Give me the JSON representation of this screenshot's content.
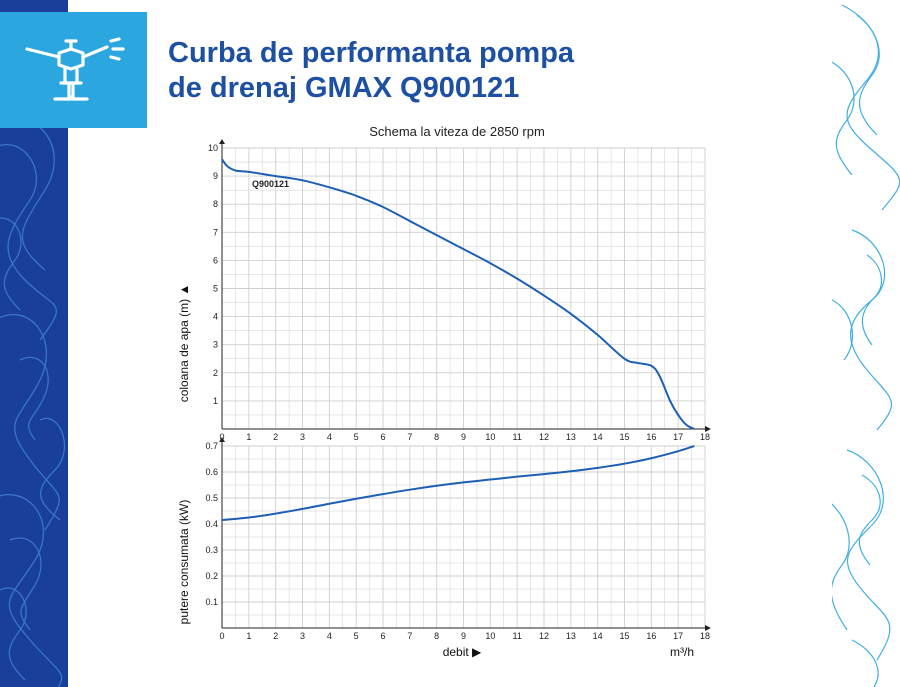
{
  "title": {
    "line1": "Curba de performanta pompa",
    "line2": "de drenaj GMAX Q900121"
  },
  "colors": {
    "title": "#1d4fa3",
    "left_band": "#1a3f9a",
    "icon_box": "#2ba6df",
    "curve": "#1d5fb3",
    "grid": "#cfcfcf",
    "contour": "#2ba6df"
  },
  "icon": "sprinkler-icon",
  "chart_data": [
    {
      "type": "line",
      "subtitle": "Schema la viteza de 2850 rpm",
      "ylabel": "coloana de apa (m) ▲",
      "series": [
        {
          "name": "Q900121",
          "x": [
            0,
            0.2,
            0.5,
            1,
            2,
            3,
            4,
            5,
            6,
            7,
            8,
            9,
            10,
            11,
            12,
            13,
            14,
            15,
            15.5,
            16,
            16.3,
            16.7,
            17,
            17.3,
            17.6
          ],
          "values": [
            9.6,
            9.35,
            9.2,
            9.15,
            9.0,
            8.85,
            8.6,
            8.3,
            7.9,
            7.4,
            6.9,
            6.4,
            5.9,
            5.35,
            4.75,
            4.1,
            3.35,
            2.5,
            2.35,
            2.25,
            1.9,
            1.0,
            0.5,
            0.15,
            0.0
          ]
        }
      ],
      "xlim": [
        0,
        18
      ],
      "ylim": [
        0,
        10
      ],
      "xticks": [
        "0",
        "1",
        "2",
        "3",
        "4",
        "5",
        "6",
        "7",
        "8",
        "9",
        "10",
        "11",
        "12",
        "13",
        "14",
        "15",
        "16",
        "17",
        "18"
      ],
      "yticks": [
        "1",
        "2",
        "3",
        "4",
        "5",
        "6",
        "7",
        "8",
        "9",
        "10"
      ],
      "grid": true
    },
    {
      "type": "line",
      "ylabel": "putere consumata (kW)",
      "xlabel": "debit ▶",
      "xunit": "m³/h",
      "series": [
        {
          "x": [
            0,
            1,
            2,
            3,
            4,
            5,
            6,
            7,
            8,
            9,
            10,
            11,
            12,
            13,
            14,
            15,
            16,
            17,
            17.6
          ],
          "values": [
            0.415,
            0.425,
            0.44,
            0.458,
            0.478,
            0.497,
            0.515,
            0.532,
            0.547,
            0.56,
            0.571,
            0.582,
            0.592,
            0.603,
            0.616,
            0.632,
            0.653,
            0.68,
            0.7
          ]
        }
      ],
      "xlim": [
        0,
        18
      ],
      "ylim": [
        0,
        0.7
      ],
      "xticks": [
        "0",
        "1",
        "2",
        "3",
        "4",
        "5",
        "6",
        "7",
        "8",
        "9",
        "10",
        "11",
        "12",
        "13",
        "14",
        "15",
        "16",
        "17",
        "18"
      ],
      "yticks": [
        "0.1",
        "0.2",
        "0.3",
        "0.4",
        "0.5",
        "0.6",
        "0.7"
      ],
      "grid": true
    }
  ]
}
